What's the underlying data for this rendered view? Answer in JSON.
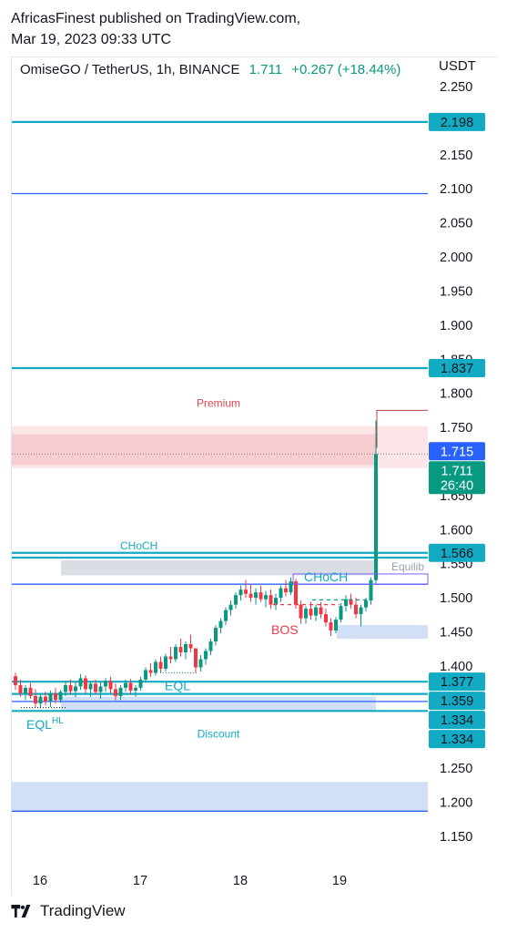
{
  "publisher": {
    "line1": "AfricasFinest published on TradingView.com,",
    "line2": "Mar 19, 2023 09:33 UTC"
  },
  "header": {
    "symbol": "OmiseGO / TetherUS, 1h, BINANCE",
    "price": "1.711",
    "change": "+0.267 (+18.44%)",
    "currency": "USDT"
  },
  "footer": {
    "brand": "TradingView"
  },
  "colors": {
    "teal": "#13aac4",
    "blue": "#2962ff",
    "red": "#f23645",
    "green": "#089981",
    "premium_zone": "#f7c5c9",
    "discount_zone": "#c6d8f5",
    "gray_zone": "#d1d4dc"
  },
  "chart_data": {
    "type": "candlestick",
    "x_ticks": [
      "16",
      "17",
      "18",
      "19"
    ],
    "y_ticks": [
      "2.250",
      "2.150",
      "2.100",
      "2.050",
      "2.000",
      "1.950",
      "1.900",
      "1.850",
      "1.800",
      "1.750",
      "1.650",
      "1.600",
      "1.550",
      "1.500",
      "1.450",
      "1.400",
      "1.250",
      "1.200",
      "1.150"
    ],
    "ylim": [
      1.12,
      2.27
    ],
    "price_labels": [
      {
        "value": "2.198",
        "kind": "teal"
      },
      {
        "value": "1.837",
        "kind": "teal"
      },
      {
        "value": "1.715",
        "kind": "blue"
      },
      {
        "value": "1.711",
        "kind": "green",
        "sub": "26:40"
      },
      {
        "value": "1.566",
        "kind": "teal"
      },
      {
        "value": "1.377",
        "kind": "teal"
      },
      {
        "value": "1.359",
        "kind": "teal"
      },
      {
        "value": "1.334",
        "kind": "teal"
      },
      {
        "value": "1.334",
        "kind": "teal"
      }
    ],
    "horizontal_lines": [
      {
        "value": 2.198,
        "kind": "teal"
      },
      {
        "value": 2.093,
        "kind": "blue"
      },
      {
        "value": 1.837,
        "kind": "teal"
      },
      {
        "value": 1.566,
        "kind": "teal"
      },
      {
        "value": 1.559,
        "kind": "teal"
      },
      {
        "value": 1.52,
        "kind": "blue"
      },
      {
        "value": 1.377,
        "kind": "teal"
      },
      {
        "value": 1.359,
        "kind": "teal"
      },
      {
        "value": 1.348,
        "kind": "blue"
      },
      {
        "value": 1.334,
        "kind": "teal"
      },
      {
        "value": 1.187,
        "kind": "blue"
      }
    ],
    "zones": [
      {
        "name": "premium",
        "label": "Premium",
        "top": 1.74,
        "bottom": 1.695
      },
      {
        "name": "choch-gray",
        "label": "",
        "top": 1.555,
        "bottom": 1.533
      },
      {
        "name": "discount",
        "label": "Discount",
        "top": 1.355,
        "bottom": 1.333
      },
      {
        "name": "lower-blue",
        "label": "",
        "top": 1.23,
        "bottom": 1.187
      },
      {
        "name": "ob-blue",
        "label": "",
        "top": 1.46,
        "bottom": 1.44
      }
    ],
    "annotations": [
      {
        "text": "CHoCH",
        "kind": "teal-small"
      },
      {
        "text": "CHoCH",
        "kind": "teal"
      },
      {
        "text": "BOS",
        "kind": "red"
      },
      {
        "text": "EQL",
        "kind": "teal"
      },
      {
        "text": "EQL",
        "sup": "HL",
        "kind": "teal"
      },
      {
        "text": "Equilib",
        "kind": "gray"
      }
    ],
    "candles": [
      [
        1.385,
        1.39,
        1.365,
        1.372
      ],
      [
        1.372,
        1.38,
        1.355,
        1.36
      ],
      [
        1.36,
        1.372,
        1.35,
        1.368
      ],
      [
        1.368,
        1.375,
        1.352,
        1.356
      ],
      [
        1.356,
        1.366,
        1.34,
        1.345
      ],
      [
        1.345,
        1.36,
        1.338,
        1.355
      ],
      [
        1.355,
        1.362,
        1.342,
        1.348
      ],
      [
        1.348,
        1.364,
        1.34,
        1.36
      ],
      [
        1.36,
        1.368,
        1.345,
        1.35
      ],
      [
        1.35,
        1.365,
        1.346,
        1.362
      ],
      [
        1.362,
        1.378,
        1.356,
        1.372
      ],
      [
        1.372,
        1.38,
        1.358,
        1.363
      ],
      [
        1.363,
        1.376,
        1.354,
        1.37
      ],
      [
        1.37,
        1.388,
        1.365,
        1.382
      ],
      [
        1.382,
        1.386,
        1.36,
        1.366
      ],
      [
        1.366,
        1.378,
        1.355,
        1.374
      ],
      [
        1.374,
        1.38,
        1.358,
        1.362
      ],
      [
        1.362,
        1.376,
        1.352,
        1.37
      ],
      [
        1.37,
        1.382,
        1.362,
        1.378
      ],
      [
        1.378,
        1.384,
        1.36,
        1.366
      ],
      [
        1.366,
        1.374,
        1.35,
        1.356
      ],
      [
        1.356,
        1.372,
        1.35,
        1.368
      ],
      [
        1.368,
        1.38,
        1.362,
        1.375
      ],
      [
        1.375,
        1.381,
        1.358,
        1.364
      ],
      [
        1.364,
        1.372,
        1.355,
        1.368
      ],
      [
        1.368,
        1.384,
        1.364,
        1.38
      ],
      [
        1.38,
        1.398,
        1.376,
        1.394
      ],
      [
        1.394,
        1.404,
        1.384,
        1.39
      ],
      [
        1.39,
        1.41,
        1.386,
        1.406
      ],
      [
        1.406,
        1.414,
        1.39,
        1.396
      ],
      [
        1.396,
        1.418,
        1.392,
        1.414
      ],
      [
        1.414,
        1.428,
        1.404,
        1.41
      ],
      [
        1.41,
        1.432,
        1.406,
        1.428
      ],
      [
        1.428,
        1.44,
        1.414,
        1.42
      ],
      [
        1.42,
        1.436,
        1.41,
        1.432
      ],
      [
        1.432,
        1.446,
        1.42,
        1.426
      ],
      [
        1.426,
        1.42,
        1.39,
        1.398
      ],
      [
        1.398,
        1.416,
        1.392,
        1.41
      ],
      [
        1.41,
        1.426,
        1.402,
        1.422
      ],
      [
        1.422,
        1.44,
        1.416,
        1.436
      ],
      [
        1.436,
        1.46,
        1.43,
        1.456
      ],
      [
        1.456,
        1.47,
        1.448,
        1.466
      ],
      [
        1.466,
        1.486,
        1.46,
        1.482
      ],
      [
        1.482,
        1.496,
        1.474,
        1.49
      ],
      [
        1.49,
        1.508,
        1.484,
        1.504
      ],
      [
        1.504,
        1.518,
        1.496,
        1.512
      ],
      [
        1.512,
        1.526,
        1.5,
        1.506
      ],
      [
        1.506,
        1.52,
        1.494,
        1.5
      ],
      [
        1.5,
        1.514,
        1.49,
        1.508
      ],
      [
        1.508,
        1.518,
        1.494,
        1.498
      ],
      [
        1.498,
        1.51,
        1.486,
        1.504
      ],
      [
        1.504,
        1.512,
        1.484,
        1.49
      ],
      [
        1.49,
        1.506,
        1.482,
        1.5
      ],
      [
        1.5,
        1.518,
        1.494,
        1.514
      ],
      [
        1.514,
        1.526,
        1.502,
        1.508
      ],
      [
        1.508,
        1.53,
        1.504,
        1.524
      ],
      [
        1.524,
        1.528,
        1.484,
        1.49
      ],
      [
        1.49,
        1.496,
        1.462,
        1.47
      ],
      [
        1.47,
        1.488,
        1.462,
        1.484
      ],
      [
        1.484,
        1.494,
        1.468,
        1.474
      ],
      [
        1.474,
        1.49,
        1.466,
        1.486
      ],
      [
        1.486,
        1.494,
        1.47,
        1.476
      ],
      [
        1.476,
        1.484,
        1.458,
        1.464
      ],
      [
        1.464,
        1.47,
        1.444,
        1.452
      ],
      [
        1.452,
        1.472,
        1.448,
        1.468
      ],
      [
        1.468,
        1.492,
        1.464,
        1.488
      ],
      [
        1.488,
        1.504,
        1.48,
        1.498
      ],
      [
        1.498,
        1.506,
        1.484,
        1.49
      ],
      [
        1.49,
        1.5,
        1.47,
        1.476
      ],
      [
        1.476,
        1.49,
        1.458,
        1.486
      ],
      [
        1.486,
        1.5,
        1.48,
        1.496
      ],
      [
        1.496,
        1.53,
        1.49,
        1.526
      ],
      [
        1.526,
        1.76,
        1.52,
        1.711
      ]
    ]
  }
}
